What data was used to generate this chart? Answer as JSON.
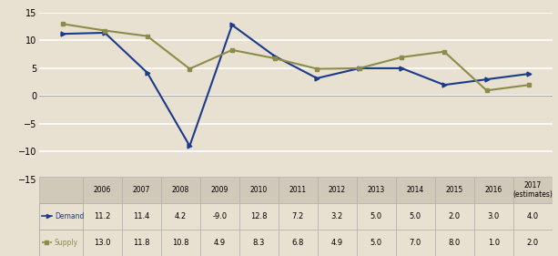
{
  "years": [
    "2006",
    "2007",
    "2008",
    "2009",
    "2010",
    "2011",
    "2012",
    "2013",
    "2014",
    "2015",
    "2016",
    "2017\n(estimates)"
  ],
  "demand": [
    11.2,
    11.4,
    4.2,
    -9.0,
    12.8,
    7.2,
    3.2,
    5.0,
    5.0,
    2.0,
    3.0,
    4.0
  ],
  "supply": [
    13.0,
    11.8,
    10.8,
    4.9,
    8.3,
    6.8,
    4.9,
    5.0,
    7.0,
    8.0,
    1.0,
    2.0
  ],
  "demand_color": "#1a3a8c",
  "supply_color": "#8c8c4a",
  "demand_label": "Demand",
  "supply_label": "Supply",
  "ylim": [
    -15,
    15
  ],
  "yticks": [
    -15,
    -10,
    -5,
    0,
    5,
    10,
    15
  ],
  "background_color": "#e8e0d0",
  "grid_color": "#ffffff",
  "table_header_bg": "#d0c8b8",
  "table_demand_str": [
    "11.2",
    "11.4",
    "4.2",
    "-9.0",
    "12.8",
    "7.2",
    "3.2",
    "5.0",
    "5.0",
    "2.0",
    "3.0",
    "4.0"
  ],
  "table_supply_str": [
    "13.0",
    "11.8",
    "10.8",
    "4.9",
    "8.3",
    "6.8",
    "4.9",
    "5.0",
    "7.0",
    "8.0",
    "1.0",
    "2.0"
  ]
}
